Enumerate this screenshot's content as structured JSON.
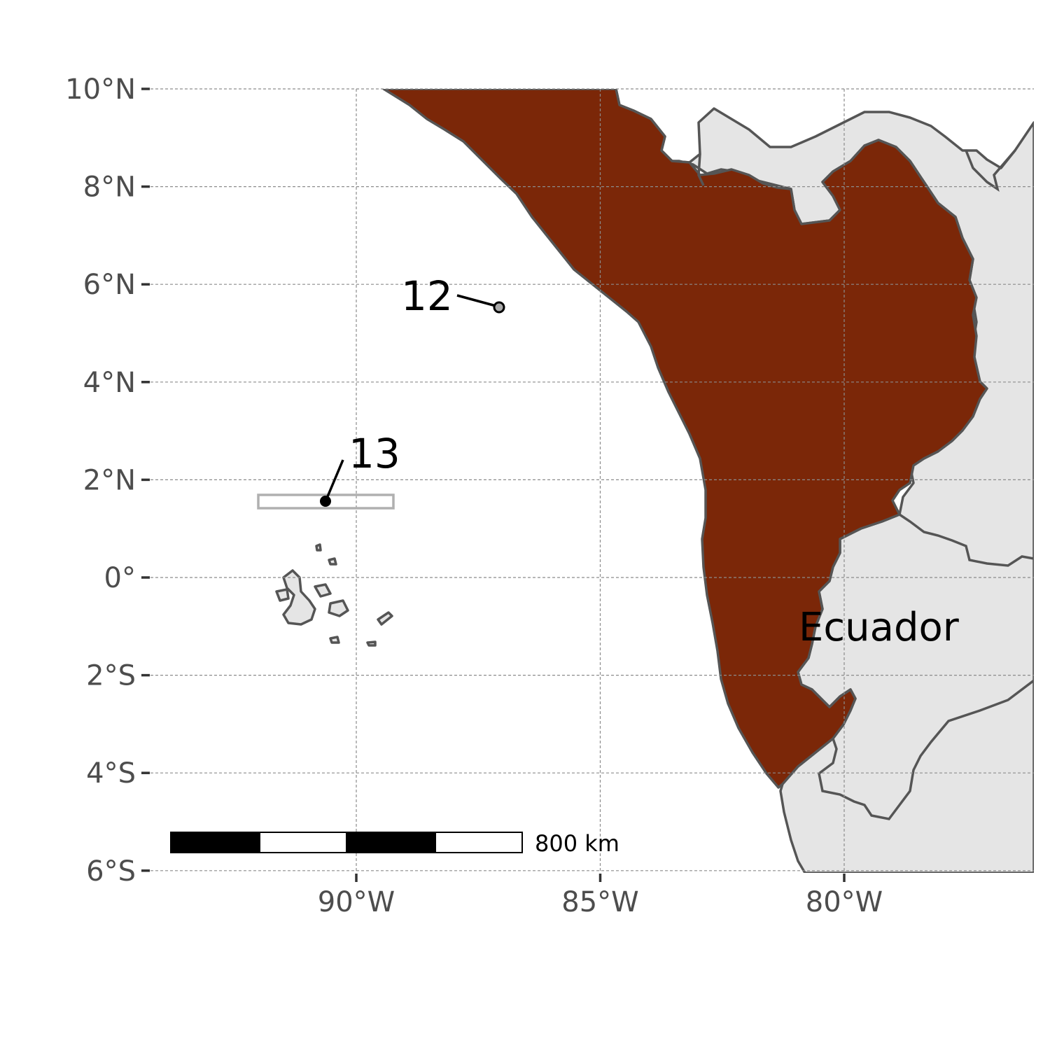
{
  "map": {
    "axes": {
      "lat_ticks": [
        "10°N",
        "8°N",
        "6°N",
        "4°N",
        "2°N",
        "0°",
        "2°S",
        "4°S",
        "6°S"
      ],
      "lon_ticks": [
        "90°W",
        "85°W",
        "80°W"
      ],
      "lat_range": [
        -6,
        10
      ],
      "lon_range": [
        -94.2,
        -76.1
      ],
      "grid": true
    },
    "labels": {
      "region": "Ecuador",
      "point_12": "12",
      "point_13": "13"
    },
    "points": [
      {
        "id": "12",
        "lon": -87.1,
        "lat": 5.55
      },
      {
        "id": "13",
        "lon": -90.6,
        "lat": 1.55
      }
    ],
    "scale_bar": {
      "label": "800 km",
      "segments": 4
    },
    "colors": {
      "highlight_region": "#7b2708",
      "land": "#e5e5e5",
      "coast": "#555555",
      "grid": "#8c8c8c",
      "box": "#b0b0b0"
    }
  }
}
